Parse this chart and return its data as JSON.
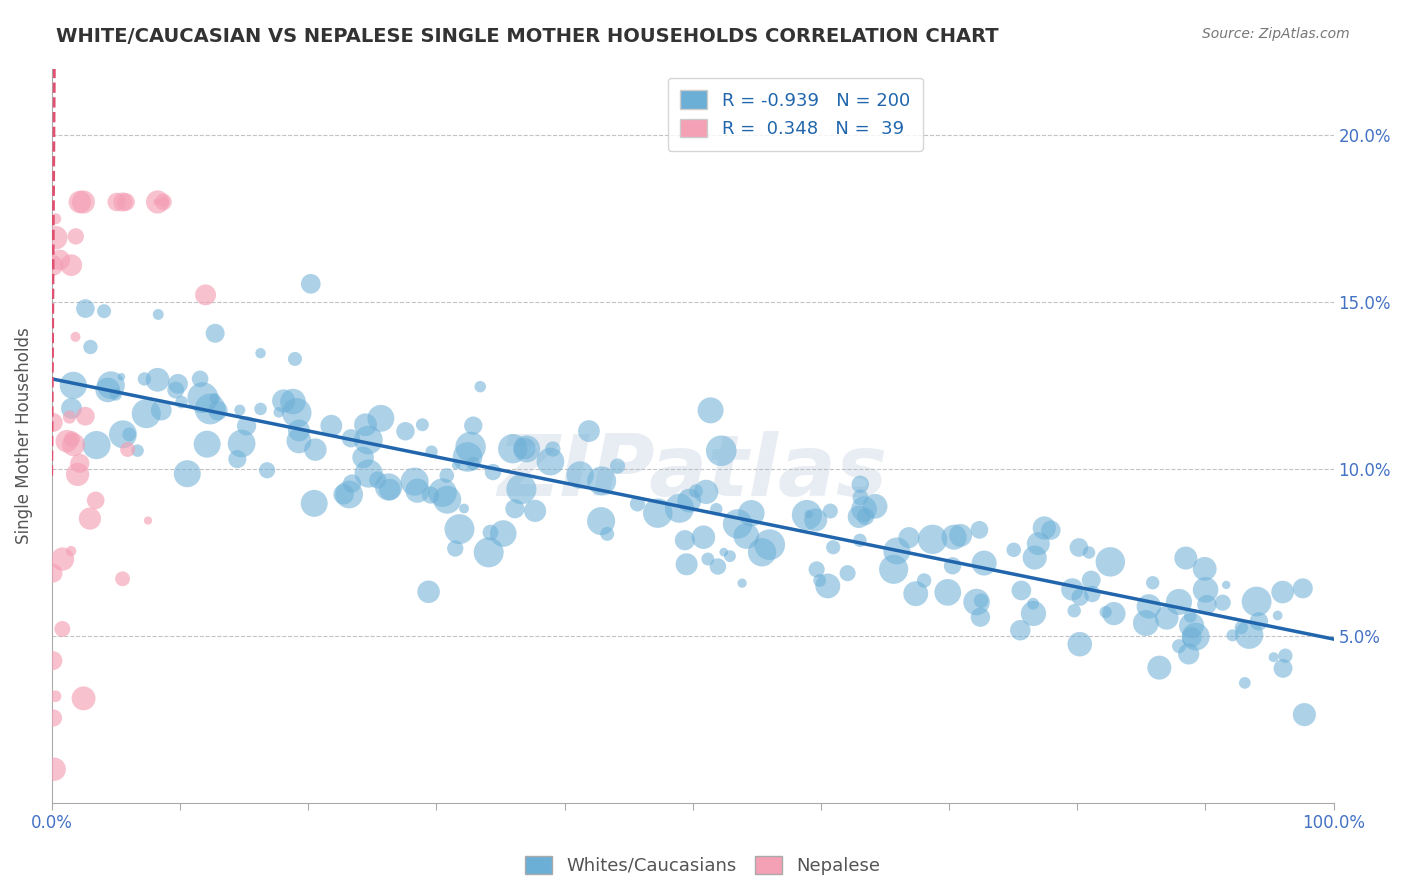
{
  "title": "WHITE/CAUCASIAN VS NEPALESE SINGLE MOTHER HOUSEHOLDS CORRELATION CHART",
  "source": "Source: ZipAtlas.com",
  "ylabel": "Single Mother Households",
  "watermark": "ZIPatlas",
  "legend_labels": [
    "Whites/Caucasians",
    "Nepalese"
  ],
  "blue_R": -0.939,
  "blue_N": 200,
  "pink_R": 0.348,
  "pink_N": 39,
  "blue_color": "#6baed6",
  "blue_line_color": "#2166ac",
  "pink_color": "#f4a0b5",
  "pink_line_color": "#e05070",
  "blue_scatter_alpha": 0.55,
  "pink_scatter_alpha": 0.65,
  "xlim": [
    0.0,
    1.0
  ],
  "ylim": [
    0.0,
    0.22
  ],
  "x_ticks": [
    0.0,
    0.1,
    0.2,
    0.3,
    0.4,
    0.5,
    0.6,
    0.7,
    0.8,
    0.9,
    1.0
  ],
  "x_tick_labels": [
    "0.0%",
    "",
    "",
    "",
    "",
    "",
    "",
    "",
    "",
    "",
    "100.0%"
  ],
  "y_ticks": [
    0.0,
    0.05,
    0.1,
    0.15,
    0.2
  ],
  "y_tick_labels": [
    "",
    "5.0%",
    "10.0%",
    "15.0%",
    "20.0%"
  ],
  "grid_color": "#aaaaaa",
  "background_color": "#ffffff",
  "seed": 42
}
